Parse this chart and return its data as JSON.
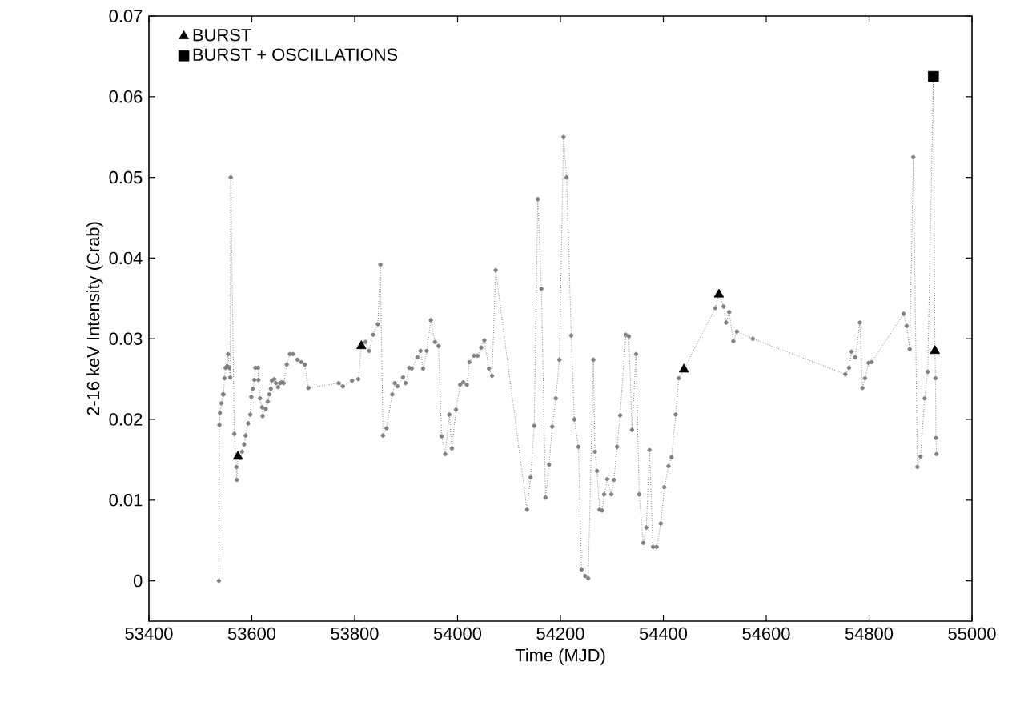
{
  "chart_data": {
    "type": "line",
    "xlabel": "Time (MJD)",
    "ylabel": "2-16 keV Intensity (Crab)",
    "xlim": [
      53400,
      55000
    ],
    "xticks": [
      53400,
      53600,
      53800,
      54000,
      54200,
      54400,
      54600,
      54800,
      55000
    ],
    "ylim": [
      -0.005,
      0.07
    ],
    "yticks": [
      0,
      0.01,
      0.02,
      0.03,
      0.04,
      0.05,
      0.06,
      0.07
    ],
    "grid": false,
    "legend": "top left",
    "series": [
      {
        "color": "#808080",
        "marker": "circle",
        "line_style": "dotted",
        "x": [
          53536,
          53537,
          53538,
          53541,
          53544,
          53545,
          53547,
          53549,
          53552,
          53554,
          53556,
          53558,
          53559,
          53566,
          53570,
          53571,
          53573,
          53577,
          53581,
          53585,
          53588,
          53593,
          53597,
          53599,
          53602,
          53605,
          53607,
          53612,
          53613,
          53616,
          53620,
          53621,
          53627,
          53631,
          53634,
          53637,
          53639,
          53644,
          53647,
          53651,
          53655,
          53658,
          53662,
          53668,
          53674,
          53680,
          53689,
          53696,
          53703,
          53710,
          53769,
          53777,
          53795,
          53807,
          53813,
          53821,
          53828,
          53836,
          53845,
          53850,
          53855,
          53862,
          53873,
          53878,
          53883,
          53894,
          53899,
          53906,
          53911,
          53922,
          53928,
          53933,
          53940,
          53948,
          53956,
          53963,
          53969,
          53976,
          53984,
          53989,
          53997,
          54005,
          54011,
          54018,
          54023,
          54032,
          54039,
          54046,
          54052,
          54061,
          54067,
          54074,
          54135,
          54142,
          54149,
          54156,
          54163,
          54171,
          54178,
          54184,
          54191,
          54198,
          54206,
          54212,
          54221,
          54227,
          54235,
          54241,
          54248,
          54254,
          54264,
          54267,
          54271,
          54276,
          54281,
          54285,
          54291,
          54299,
          54304,
          54310,
          54316,
          54327,
          54333,
          54339,
          54347,
          54353,
          54361,
          54367,
          54373,
          54380,
          54387,
          54395,
          54402,
          54410,
          54416,
          54424,
          54430,
          54440,
          54501,
          54508,
          54517,
          54522,
          54528,
          54536,
          54543,
          54574,
          54754,
          54761,
          54766,
          54773,
          54782,
          54787,
          54792,
          54799,
          54805,
          54867,
          54873,
          54879,
          54886,
          54894,
          54900,
          54908,
          54914,
          54925,
          54928,
          54929,
          54930,
          54931
        ],
        "values": [
          0,
          0.0193,
          0.0208,
          0.022,
          0.0231,
          0.0231,
          0.0251,
          0.0264,
          0.0266,
          0.0281,
          0.0264,
          0.0252,
          0.05,
          0.0182,
          0.0141,
          0.0125,
          0.0154,
          0.0152,
          0.016,
          0.0169,
          0.018,
          0.0195,
          0.0206,
          0.0228,
          0.0238,
          0.0249,
          0.0264,
          0.0264,
          0.0249,
          0.0226,
          0.0215,
          0.0204,
          0.0213,
          0.0222,
          0.0231,
          0.0238,
          0.0248,
          0.025,
          0.0245,
          0.024,
          0.0245,
          0.0246,
          0.0245,
          0.0268,
          0.0281,
          0.0281,
          0.0274,
          0.0271,
          0.0268,
          0.0239,
          0.0245,
          0.0241,
          0.0248,
          0.025,
          0.0291,
          0.0296,
          0.0285,
          0.0305,
          0.0318,
          0.0392,
          0.018,
          0.0189,
          0.0231,
          0.0245,
          0.0241,
          0.0252,
          0.0245,
          0.0264,
          0.0263,
          0.0277,
          0.0285,
          0.0263,
          0.0285,
          0.0323,
          0.0296,
          0.0291,
          0.0179,
          0.0157,
          0.0206,
          0.0164,
          0.0212,
          0.0243,
          0.0246,
          0.0243,
          0.0271,
          0.0279,
          0.0279,
          0.0289,
          0.0298,
          0.0263,
          0.0254,
          0.0385,
          0.0088,
          0.0128,
          0.0192,
          0.0473,
          0.0362,
          0.0103,
          0.0144,
          0.0191,
          0.0226,
          0.0274,
          0.055,
          0.05,
          0.0304,
          0.02,
          0.0166,
          0.0014,
          0.0006,
          0.0003,
          0.0274,
          0.016,
          0.0136,
          0.0088,
          0.0087,
          0.0107,
          0.0126,
          0.0107,
          0.0125,
          0.0166,
          0.0205,
          0.0305,
          0.0303,
          0.0187,
          0.0281,
          0.0107,
          0.0047,
          0.0066,
          0.0162,
          0.0042,
          0.0042,
          0.0071,
          0.0116,
          0.0142,
          0.0153,
          0.0206,
          0.0251,
          0.0262,
          0.0338,
          0.0355,
          0.034,
          0.032,
          0.0333,
          0.0297,
          0.0309,
          0.03,
          0.0256,
          0.0264,
          0.0284,
          0.0277,
          0.032,
          0.0239,
          0.0251,
          0.027,
          0.0271,
          0.0331,
          0.0316,
          0.0287,
          0.0525,
          0.0141,
          0.0154,
          0.0226,
          0.0259,
          0.0625,
          0.0285,
          0.0251,
          0.0177,
          0.0157
        ]
      },
      {
        "name": "BURST",
        "type": "scatter",
        "color": "#000000",
        "marker": "triangle",
        "x": [
          53573,
          53813,
          54440,
          54508,
          54928
        ],
        "values": [
          0.0154,
          0.0291,
          0.0262,
          0.0355,
          0.0285
        ]
      },
      {
        "name": "BURST + OSCILLATIONS",
        "type": "scatter",
        "color": "#000000",
        "marker": "square",
        "x": [
          54925
        ],
        "values": [
          0.0625
        ]
      }
    ]
  }
}
